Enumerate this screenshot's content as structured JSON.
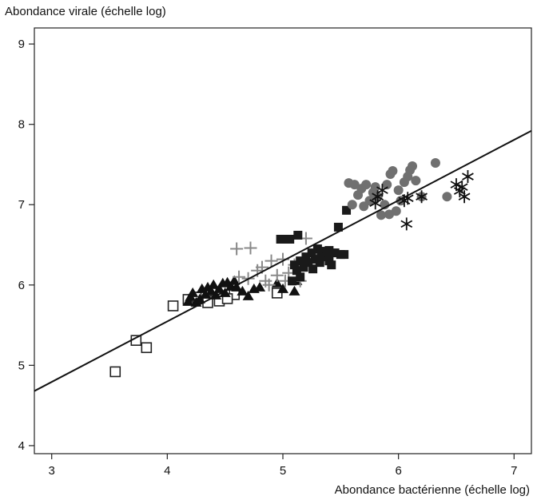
{
  "chart_data": {
    "type": "scatter",
    "ylabel": "Abondance virale (échelle log)",
    "xlabel": "Abondance bactérienne (échelle log)",
    "xlim": [
      2.85,
      7.15
    ],
    "ylim": [
      3.9,
      9.2
    ],
    "xticks": [
      "3",
      "4",
      "5",
      "6",
      "7"
    ],
    "yticks": [
      "4",
      "5",
      "6",
      "7",
      "8",
      "9"
    ],
    "grid": false,
    "regression_line": {
      "x": [
        2.85,
        7.15
      ],
      "y": [
        4.68,
        7.92
      ]
    },
    "series": [
      {
        "marker": "open-square",
        "color": "#222222",
        "points": [
          [
            3.55,
            4.92
          ],
          [
            3.73,
            5.31
          ],
          [
            3.82,
            5.22
          ],
          [
            4.05,
            5.74
          ],
          [
            4.18,
            5.82
          ],
          [
            4.25,
            5.85
          ],
          [
            4.35,
            5.78
          ],
          [
            4.45,
            5.8
          ],
          [
            4.58,
            5.88
          ],
          [
            4.95,
            5.9
          ],
          [
            4.38,
            5.92
          ],
          [
            4.52,
            5.83
          ]
        ]
      },
      {
        "marker": "filled-triangle",
        "color": "#111111",
        "points": [
          [
            4.18,
            5.79
          ],
          [
            4.2,
            5.85
          ],
          [
            4.22,
            5.9
          ],
          [
            4.25,
            5.78
          ],
          [
            4.3,
            5.95
          ],
          [
            4.33,
            5.88
          ],
          [
            4.35,
            5.97
          ],
          [
            4.38,
            5.92
          ],
          [
            4.4,
            6.0
          ],
          [
            4.42,
            5.87
          ],
          [
            4.45,
            5.95
          ],
          [
            4.48,
            6.02
          ],
          [
            4.5,
            5.9
          ],
          [
            4.52,
            6.03
          ],
          [
            4.55,
            5.98
          ],
          [
            4.58,
            6.05
          ],
          [
            4.6,
            5.97
          ],
          [
            4.65,
            5.92
          ],
          [
            4.7,
            5.86
          ],
          [
            4.75,
            5.95
          ],
          [
            4.8,
            5.97
          ],
          [
            4.95,
            6.02
          ],
          [
            5.0,
            5.95
          ],
          [
            5.1,
            5.92
          ],
          [
            5.12,
            6.05
          ],
          [
            4.28,
            5.82
          ]
        ]
      },
      {
        "marker": "plus",
        "color": "#888888",
        "points": [
          [
            4.6,
            6.45
          ],
          [
            4.72,
            6.46
          ],
          [
            4.62,
            6.1
          ],
          [
            4.78,
            6.18
          ],
          [
            4.85,
            6.05
          ],
          [
            4.9,
            6.3
          ],
          [
            4.95,
            6.12
          ],
          [
            5.0,
            6.32
          ],
          [
            5.05,
            6.15
          ],
          [
            5.1,
            6.25
          ],
          [
            5.15,
            6.05
          ],
          [
            5.2,
            6.58
          ],
          [
            4.88,
            6.0
          ],
          [
            4.7,
            6.08
          ],
          [
            4.82,
            6.22
          ],
          [
            5.02,
            6.05
          ]
        ]
      },
      {
        "marker": "filled-square",
        "color": "#1a1a1a",
        "points": [
          [
            4.98,
            6.57
          ],
          [
            5.02,
            6.57
          ],
          [
            5.06,
            6.57
          ],
          [
            5.13,
            6.62
          ],
          [
            5.1,
            6.25
          ],
          [
            5.12,
            6.18
          ],
          [
            5.15,
            6.3
          ],
          [
            5.18,
            6.22
          ],
          [
            5.2,
            6.35
          ],
          [
            5.22,
            6.28
          ],
          [
            5.25,
            6.4
          ],
          [
            5.28,
            6.32
          ],
          [
            5.3,
            6.45
          ],
          [
            5.33,
            6.38
          ],
          [
            5.35,
            6.42
          ],
          [
            5.38,
            6.35
          ],
          [
            5.4,
            6.3
          ],
          [
            5.42,
            6.25
          ],
          [
            5.45,
            6.4
          ],
          [
            5.5,
            6.38
          ],
          [
            5.53,
            6.38
          ],
          [
            5.48,
            6.72
          ],
          [
            5.55,
            6.93
          ],
          [
            5.4,
            6.43
          ],
          [
            5.15,
            6.1
          ],
          [
            5.08,
            6.05
          ],
          [
            5.26,
            6.2
          ],
          [
            5.32,
            6.28
          ]
        ]
      },
      {
        "marker": "filled-circle",
        "color": "#707070",
        "points": [
          [
            5.57,
            7.27
          ],
          [
            5.62,
            7.25
          ],
          [
            5.65,
            7.12
          ],
          [
            5.68,
            7.2
          ],
          [
            5.7,
            6.98
          ],
          [
            5.72,
            7.25
          ],
          [
            5.75,
            7.05
          ],
          [
            5.78,
            7.15
          ],
          [
            5.8,
            7.22
          ],
          [
            5.82,
            7.1
          ],
          [
            5.85,
            6.87
          ],
          [
            5.88,
            7.0
          ],
          [
            5.9,
            7.25
          ],
          [
            5.93,
            7.38
          ],
          [
            5.95,
            7.42
          ],
          [
            5.98,
            6.92
          ],
          [
            6.0,
            7.18
          ],
          [
            6.02,
            7.05
          ],
          [
            6.05,
            7.28
          ],
          [
            6.08,
            7.35
          ],
          [
            6.1,
            7.43
          ],
          [
            6.12,
            7.48
          ],
          [
            6.15,
            7.3
          ],
          [
            6.2,
            7.1
          ],
          [
            6.32,
            7.52
          ],
          [
            6.42,
            7.1
          ],
          [
            5.6,
            7.0
          ],
          [
            5.92,
            6.88
          ]
        ]
      },
      {
        "marker": "asterisk",
        "color": "#111111",
        "points": [
          [
            5.8,
            7.02
          ],
          [
            5.82,
            7.1
          ],
          [
            5.86,
            7.18
          ],
          [
            6.05,
            7.05
          ],
          [
            6.07,
            6.76
          ],
          [
            6.2,
            7.1
          ],
          [
            6.5,
            7.25
          ],
          [
            6.53,
            7.17
          ],
          [
            6.55,
            7.22
          ],
          [
            6.57,
            7.1
          ],
          [
            6.6,
            7.35
          ],
          [
            6.08,
            7.08
          ]
        ]
      }
    ]
  }
}
